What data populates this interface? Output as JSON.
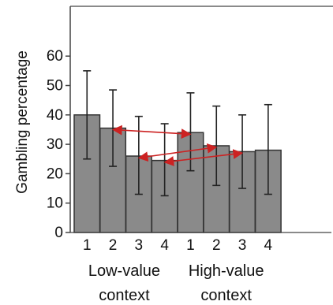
{
  "chart_data": {
    "type": "bar",
    "ylabel": "Gambling percentage",
    "ylim": [
      0,
      65
    ],
    "yticks": [
      0,
      10,
      20,
      30,
      40,
      50,
      60
    ],
    "categories": [
      "1",
      "2",
      "3",
      "4",
      "1",
      "2",
      "3",
      "4"
    ],
    "groups": [
      {
        "label_line1": "Low-value",
        "label_line2": "context"
      },
      {
        "label_line1": "High-value",
        "label_line2": "context"
      }
    ],
    "series": [
      {
        "values": [
          40,
          35.5,
          26,
          24.5,
          34,
          29.5,
          27.5,
          28
        ],
        "error_upper": [
          55,
          48.5,
          39.5,
          37,
          47.5,
          43,
          40,
          43.5
        ],
        "error_lower": [
          25,
          22.5,
          13,
          12.5,
          21,
          16,
          15,
          13
        ]
      }
    ],
    "bar_color": "#8a8a8a",
    "arrow_color": "#cc2222",
    "arrows": [
      {
        "from_bar": 4,
        "to_bar": 1
      },
      {
        "from_bar": 5,
        "to_bar": 2
      },
      {
        "from_bar": 6,
        "to_bar": 3
      }
    ],
    "grid": false
  }
}
